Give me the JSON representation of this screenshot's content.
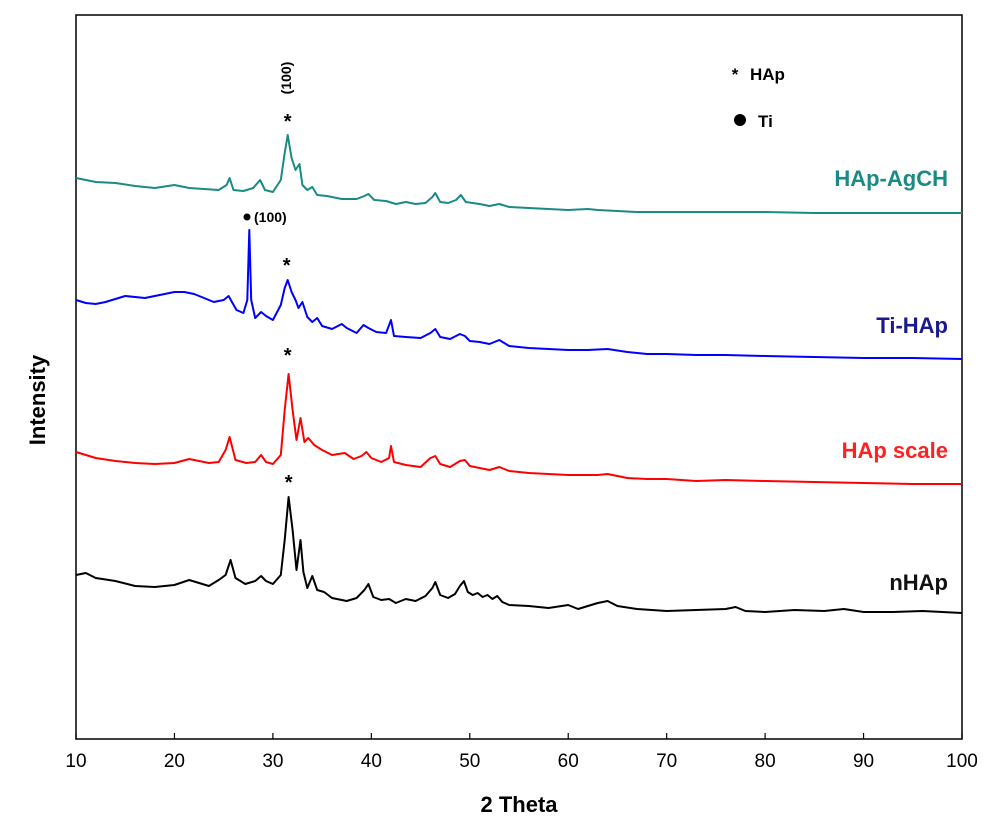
{
  "chart_data": {
    "type": "line",
    "title": "",
    "xlabel": "2 Theta",
    "ylabel": "Intensity",
    "xlim": [
      10,
      100
    ],
    "xticks": [
      "10",
      "20",
      "30",
      "40",
      "50",
      "60",
      "70",
      "80",
      "90",
      "100"
    ],
    "grid": false,
    "legend_position": "top-right",
    "legend": [
      {
        "symbol": "*",
        "label": "HAp"
      },
      {
        "symbol": "●",
        "label": "Ti"
      }
    ],
    "series": [
      {
        "name": "nHAp",
        "color": "#000000",
        "points": [
          [
            10,
            575
          ],
          [
            11,
            573
          ],
          [
            12,
            578
          ],
          [
            14,
            581
          ],
          [
            16,
            586
          ],
          [
            18,
            587
          ],
          [
            20,
            585
          ],
          [
            21.5,
            580
          ],
          [
            22.5,
            583
          ],
          [
            23.5,
            586
          ],
          [
            24.5,
            580
          ],
          [
            25.2,
            575
          ],
          [
            25.7,
            560
          ],
          [
            26.2,
            578
          ],
          [
            27.2,
            584
          ],
          [
            28.2,
            581
          ],
          [
            28.8,
            576
          ],
          [
            29.3,
            581
          ],
          [
            30,
            584
          ],
          [
            30.8,
            575
          ],
          [
            31.2,
            540
          ],
          [
            31.6,
            497
          ],
          [
            32,
            530
          ],
          [
            32.4,
            570
          ],
          [
            32.8,
            540
          ],
          [
            33.1,
            572
          ],
          [
            33.5,
            588
          ],
          [
            34,
            576
          ],
          [
            34.5,
            590
          ],
          [
            35.2,
            592
          ],
          [
            36,
            598
          ],
          [
            37.5,
            601
          ],
          [
            38.5,
            598
          ],
          [
            39.3,
            590
          ],
          [
            39.7,
            584
          ],
          [
            40.2,
            597
          ],
          [
            41,
            600
          ],
          [
            41.8,
            599
          ],
          [
            42.5,
            603
          ],
          [
            43.5,
            599
          ],
          [
            44.5,
            601
          ],
          [
            45.5,
            596
          ],
          [
            46.2,
            588
          ],
          [
            46.5,
            582
          ],
          [
            47,
            595
          ],
          [
            47.8,
            598
          ],
          [
            48.5,
            594
          ],
          [
            49,
            586
          ],
          [
            49.4,
            581
          ],
          [
            49.8,
            592
          ],
          [
            50.3,
            595
          ],
          [
            50.8,
            593
          ],
          [
            51.3,
            597
          ],
          [
            51.8,
            595
          ],
          [
            52.3,
            599
          ],
          [
            52.8,
            596
          ],
          [
            53.3,
            602
          ],
          [
            54,
            605
          ],
          [
            56,
            606
          ],
          [
            58,
            608
          ],
          [
            60,
            605
          ],
          [
            61,
            609
          ],
          [
            62,
            606
          ],
          [
            63,
            603
          ],
          [
            64,
            601
          ],
          [
            65,
            606
          ],
          [
            67,
            609
          ],
          [
            70,
            611
          ],
          [
            73,
            610
          ],
          [
            76,
            609
          ],
          [
            77,
            607
          ],
          [
            78,
            611
          ],
          [
            80,
            612
          ],
          [
            83,
            610
          ],
          [
            86,
            611
          ],
          [
            88,
            609
          ],
          [
            90,
            612
          ],
          [
            93,
            612
          ],
          [
            96,
            611
          ],
          [
            100,
            613
          ]
        ]
      },
      {
        "name": "HAp scale",
        "color": "#ff0000",
        "points": [
          [
            10,
            452
          ],
          [
            12,
            458
          ],
          [
            14,
            461
          ],
          [
            16,
            463
          ],
          [
            18,
            464
          ],
          [
            20,
            463
          ],
          [
            21.5,
            459
          ],
          [
            22.5,
            461
          ],
          [
            23.5,
            463
          ],
          [
            24.5,
            462
          ],
          [
            25.2,
            450
          ],
          [
            25.6,
            437
          ],
          [
            26.2,
            460
          ],
          [
            27.3,
            463
          ],
          [
            28.2,
            462
          ],
          [
            28.8,
            455
          ],
          [
            29.3,
            462
          ],
          [
            30,
            464
          ],
          [
            30.8,
            455
          ],
          [
            31.2,
            410
          ],
          [
            31.6,
            374
          ],
          [
            32,
            410
          ],
          [
            32.4,
            440
          ],
          [
            32.8,
            418
          ],
          [
            33.2,
            442
          ],
          [
            33.6,
            438
          ],
          [
            34.2,
            445
          ],
          [
            35,
            450
          ],
          [
            36,
            455
          ],
          [
            37.3,
            453
          ],
          [
            38.2,
            459
          ],
          [
            39,
            456
          ],
          [
            39.5,
            452
          ],
          [
            40,
            458
          ],
          [
            41,
            462
          ],
          [
            41.8,
            458
          ],
          [
            42,
            446
          ],
          [
            42.3,
            462
          ],
          [
            43.5,
            465
          ],
          [
            45,
            467
          ],
          [
            46,
            458
          ],
          [
            46.5,
            456
          ],
          [
            47,
            464
          ],
          [
            48,
            467
          ],
          [
            49,
            461
          ],
          [
            49.5,
            460
          ],
          [
            50,
            466
          ],
          [
            51,
            468
          ],
          [
            52,
            470
          ],
          [
            53,
            467
          ],
          [
            54,
            471
          ],
          [
            56,
            473
          ],
          [
            58,
            474
          ],
          [
            60,
            475
          ],
          [
            63,
            475
          ],
          [
            64,
            474
          ],
          [
            66,
            478
          ],
          [
            68,
            479
          ],
          [
            70,
            479
          ],
          [
            73,
            481
          ],
          [
            76,
            480
          ],
          [
            80,
            481
          ],
          [
            85,
            482
          ],
          [
            90,
            483
          ],
          [
            95,
            484
          ],
          [
            100,
            484
          ]
        ]
      },
      {
        "name": "Ti-HAp",
        "color": "#0000ff",
        "points": [
          [
            10,
            300
          ],
          [
            11,
            303
          ],
          [
            12,
            304
          ],
          [
            13,
            302
          ],
          [
            15,
            296
          ],
          [
            17,
            298
          ],
          [
            19,
            294
          ],
          [
            20,
            292
          ],
          [
            21,
            292
          ],
          [
            22,
            294
          ],
          [
            23,
            298
          ],
          [
            24,
            302
          ],
          [
            25,
            300
          ],
          [
            25.5,
            296
          ],
          [
            26.3,
            310
          ],
          [
            27,
            313
          ],
          [
            27.4,
            300
          ],
          [
            27.6,
            230
          ],
          [
            27.8,
            300
          ],
          [
            28.2,
            318
          ],
          [
            28.8,
            312
          ],
          [
            29.3,
            316
          ],
          [
            30,
            320
          ],
          [
            30.8,
            305
          ],
          [
            31.2,
            288
          ],
          [
            31.5,
            280
          ],
          [
            31.9,
            292
          ],
          [
            32.3,
            300
          ],
          [
            32.6,
            308
          ],
          [
            33,
            302
          ],
          [
            33.5,
            317
          ],
          [
            34,
            322
          ],
          [
            34.5,
            318
          ],
          [
            35,
            326
          ],
          [
            36,
            329
          ],
          [
            37,
            324
          ],
          [
            37.5,
            328
          ],
          [
            38.5,
            333
          ],
          [
            39.2,
            325
          ],
          [
            39.7,
            328
          ],
          [
            40.5,
            332
          ],
          [
            41.5,
            333
          ],
          [
            42,
            320
          ],
          [
            42.3,
            336
          ],
          [
            43.5,
            337
          ],
          [
            45,
            338
          ],
          [
            46,
            333
          ],
          [
            46.5,
            329
          ],
          [
            47,
            337
          ],
          [
            48,
            339
          ],
          [
            49,
            334
          ],
          [
            49.5,
            336
          ],
          [
            50,
            341
          ],
          [
            51,
            342
          ],
          [
            52,
            344
          ],
          [
            53,
            340
          ],
          [
            54,
            346
          ],
          [
            56,
            348
          ],
          [
            58,
            349
          ],
          [
            60,
            350
          ],
          [
            62,
            350
          ],
          [
            64,
            349
          ],
          [
            66,
            352
          ],
          [
            68,
            354
          ],
          [
            70,
            354
          ],
          [
            73,
            355
          ],
          [
            76,
            355
          ],
          [
            80,
            356
          ],
          [
            85,
            357
          ],
          [
            90,
            358
          ],
          [
            95,
            358
          ],
          [
            100,
            359
          ]
        ]
      },
      {
        "name": "HAp-AgCH",
        "color": "#1a8a85",
        "points": [
          [
            10,
            178
          ],
          [
            12,
            182
          ],
          [
            14,
            183
          ],
          [
            16,
            186
          ],
          [
            18,
            188
          ],
          [
            20,
            185
          ],
          [
            21.5,
            188
          ],
          [
            23,
            189
          ],
          [
            24.5,
            190
          ],
          [
            25.3,
            185
          ],
          [
            25.6,
            178
          ],
          [
            26,
            190
          ],
          [
            27,
            191
          ],
          [
            28,
            188
          ],
          [
            28.7,
            180
          ],
          [
            29.2,
            190
          ],
          [
            30,
            192
          ],
          [
            30.8,
            180
          ],
          [
            31.2,
            153
          ],
          [
            31.5,
            135
          ],
          [
            31.9,
            158
          ],
          [
            32.3,
            170
          ],
          [
            32.7,
            164
          ],
          [
            33,
            185
          ],
          [
            33.5,
            190
          ],
          [
            34,
            187
          ],
          [
            34.5,
            195
          ],
          [
            35.5,
            196
          ],
          [
            37,
            199
          ],
          [
            38.5,
            199
          ],
          [
            39.3,
            196
          ],
          [
            39.7,
            194
          ],
          [
            40.3,
            200
          ],
          [
            41.5,
            201
          ],
          [
            42.5,
            204
          ],
          [
            43.5,
            202
          ],
          [
            44.5,
            204
          ],
          [
            45.5,
            203
          ],
          [
            46.2,
            197
          ],
          [
            46.5,
            193
          ],
          [
            47,
            202
          ],
          [
            47.8,
            203
          ],
          [
            48.6,
            200
          ],
          [
            49.1,
            195
          ],
          [
            49.6,
            202
          ],
          [
            50.3,
            203
          ],
          [
            51,
            204
          ],
          [
            52,
            206
          ],
          [
            53,
            204
          ],
          [
            54,
            207
          ],
          [
            56,
            208
          ],
          [
            58,
            209
          ],
          [
            60,
            210
          ],
          [
            62,
            209
          ],
          [
            63,
            210
          ],
          [
            65,
            211
          ],
          [
            67,
            212
          ],
          [
            70,
            212
          ],
          [
            73,
            212
          ],
          [
            76,
            212
          ],
          [
            80,
            212
          ],
          [
            85,
            213
          ],
          [
            90,
            213
          ],
          [
            95,
            213
          ],
          [
            100,
            213
          ]
        ]
      }
    ],
    "annotations": [
      {
        "text": "(100)",
        "at": "HAp-AgCH 31.5"
      },
      {
        "text": "(100)",
        "at": "Ti-HAp 27.6"
      }
    ]
  }
}
